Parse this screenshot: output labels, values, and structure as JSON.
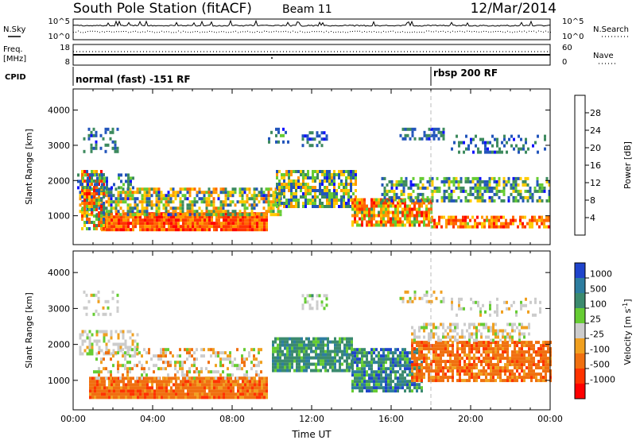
{
  "header": {
    "station": "South Pole Station (fitACF)",
    "beam": "Beam 11",
    "date": "12/Mar/2014"
  },
  "top_panel": {
    "left_label": "N.Sky",
    "right_label": "N.Search",
    "left_ticks": [
      "10^5",
      "10^0"
    ],
    "right_ticks": [
      "10^5",
      "10^0"
    ]
  },
  "freq_panel": {
    "label_line1": "Freq.",
    "label_line2": "[MHz]",
    "left_ticks": [
      "18",
      "8"
    ],
    "right_label": "Nave",
    "right_ticks": [
      "60",
      "0"
    ]
  },
  "cpid": {
    "label": "CPID",
    "segments": [
      {
        "start_hour": 0,
        "text": "normal (fast) -151 RF"
      },
      {
        "start_hour": 18,
        "text": "rbsp 200 RF"
      }
    ]
  },
  "colors": {
    "power": [
      "#1010ff",
      "#2255bb",
      "#3d8a5e",
      "#66cc33",
      "#ffcc00",
      "#ff9900",
      "#ff6600",
      "#ff3300",
      "#ff0000"
    ],
    "velocity": [
      "#1f44cc",
      "#2d7da0",
      "#3b8a6e",
      "#66cc33",
      "#cccccc",
      "#f0a020",
      "#f07010",
      "#ff3300",
      "#ff0000"
    ]
  },
  "chart_data": [
    {
      "type": "heatmap",
      "name": "power-panel",
      "title": "",
      "ylabel": "Slant Range [km]",
      "ylim": [
        180,
        4600
      ],
      "xlim": [
        0,
        24
      ],
      "yticks": [
        1000,
        2000,
        3000,
        4000
      ],
      "colorbar": {
        "label": "Power [dB]",
        "ticks": [
          4,
          8,
          12,
          16,
          20,
          24,
          28
        ],
        "range": [
          0,
          32
        ]
      }
    },
    {
      "type": "heatmap",
      "name": "velocity-panel",
      "title": "",
      "xlabel": "Time UT",
      "ylabel": "Slant Range [km]",
      "ylim": [
        180,
        4600
      ],
      "xlim": [
        0,
        24
      ],
      "yticks": [
        1000,
        2000,
        3000,
        4000
      ],
      "xtick_labels": [
        "00:00",
        "04:00",
        "08:00",
        "12:00",
        "16:00",
        "20:00",
        "00:00"
      ],
      "xtick_hours": [
        0,
        4,
        8,
        12,
        16,
        20,
        24
      ],
      "colorbar": {
        "label": "Velocity [m s",
        "label_sup": "-1",
        "label_end": "]",
        "ticks": [
          "1000",
          "500",
          "100",
          "25",
          "-25",
          "-100",
          "-500",
          "-1000"
        ]
      }
    }
  ]
}
